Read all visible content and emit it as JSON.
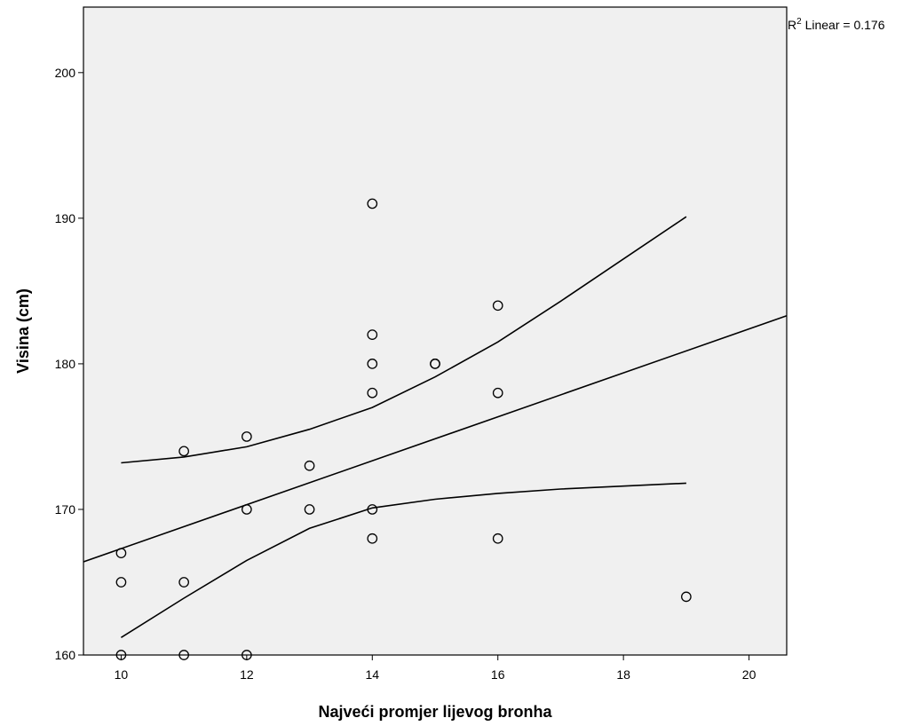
{
  "chart_data": {
    "type": "scatter",
    "xlabel": "Najveći promjer lijevog bronha",
    "ylabel": "Visina (cm)",
    "xlim": [
      9.4,
      20.6
    ],
    "ylim": [
      160,
      204.5
    ],
    "x_ticks": [
      10,
      12,
      14,
      16,
      18,
      20
    ],
    "y_ticks": [
      160,
      170,
      180,
      190,
      200
    ],
    "grid": false,
    "points": [
      {
        "x": 10,
        "y": 167
      },
      {
        "x": 10,
        "y": 165
      },
      {
        "x": 10,
        "y": 160
      },
      {
        "x": 11,
        "y": 174
      },
      {
        "x": 11,
        "y": 165
      },
      {
        "x": 11,
        "y": 160
      },
      {
        "x": 12,
        "y": 175
      },
      {
        "x": 12,
        "y": 170
      },
      {
        "x": 12,
        "y": 160
      },
      {
        "x": 13,
        "y": 173
      },
      {
        "x": 13,
        "y": 170
      },
      {
        "x": 14,
        "y": 191
      },
      {
        "x": 14,
        "y": 182
      },
      {
        "x": 14,
        "y": 180
      },
      {
        "x": 14,
        "y": 178
      },
      {
        "x": 14,
        "y": 170
      },
      {
        "x": 14,
        "y": 168
      },
      {
        "x": 15,
        "y": 180
      },
      {
        "x": 15,
        "y": 180
      },
      {
        "x": 16,
        "y": 184
      },
      {
        "x": 16,
        "y": 178
      },
      {
        "x": 16,
        "y": 168
      },
      {
        "x": 19,
        "y": 164
      }
    ],
    "fit_line": {
      "type": "linear",
      "x": [
        9.4,
        20.6
      ],
      "y": [
        166.4,
        183.3
      ]
    },
    "ci_upper": {
      "x": [
        10,
        11,
        12,
        13,
        14,
        15,
        16,
        17,
        18,
        19
      ],
      "y": [
        173.2,
        173.6,
        174.3,
        175.5,
        177.0,
        179.1,
        181.5,
        184.3,
        187.2,
        190.1
      ]
    },
    "ci_lower": {
      "x": [
        10,
        11,
        12,
        13,
        14,
        15,
        16,
        17,
        18,
        19
      ],
      "y": [
        161.2,
        163.9,
        166.5,
        168.7,
        170.1,
        170.7,
        171.1,
        171.4,
        171.6,
        171.8
      ]
    },
    "r2_label": {
      "prefix": "R",
      "sup": "2",
      "text": " Linear = 0.176"
    },
    "colors": {
      "plot_bg": "#f0f0f0",
      "line": "#000000",
      "marker": "#000000"
    }
  }
}
